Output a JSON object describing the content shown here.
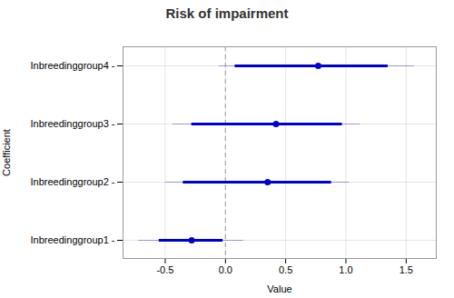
{
  "chart_data": {
    "type": "forest",
    "title": "Risk of impairment",
    "xlabel": "Value",
    "ylabel": "Coefficient",
    "categories": [
      "Inbreedinggroup1 -",
      "Inbreedinggroup2 -",
      "Inbreedinggroup3 -",
      "Inbreedinggroup4 -"
    ],
    "values": [
      -0.28,
      0.35,
      0.42,
      0.77
    ],
    "color": "#0000cc",
    "ci95": {
      "low": [
        -0.55,
        -0.35,
        -0.28,
        0.08
      ],
      "high": [
        -0.02,
        0.88,
        0.97,
        1.35
      ],
      "color": "#0000cc"
    },
    "ci99": {
      "low": [
        -0.72,
        -0.5,
        -0.44,
        -0.05
      ],
      "high": [
        0.15,
        1.03,
        1.12,
        1.57
      ],
      "color": "#9999cc"
    },
    "vline": {
      "value": 0.0,
      "color": "#aaaaaa",
      "line_style": "dashed"
    },
    "xlim": [
      -0.85,
      1.75
    ],
    "xticks": [
      -0.5,
      {
        "value": 0.0,
        "label": "0.0"
      },
      0.5,
      {
        "value": 1.0,
        "label": "1.0"
      },
      1.5
    ],
    "grid": true
  }
}
